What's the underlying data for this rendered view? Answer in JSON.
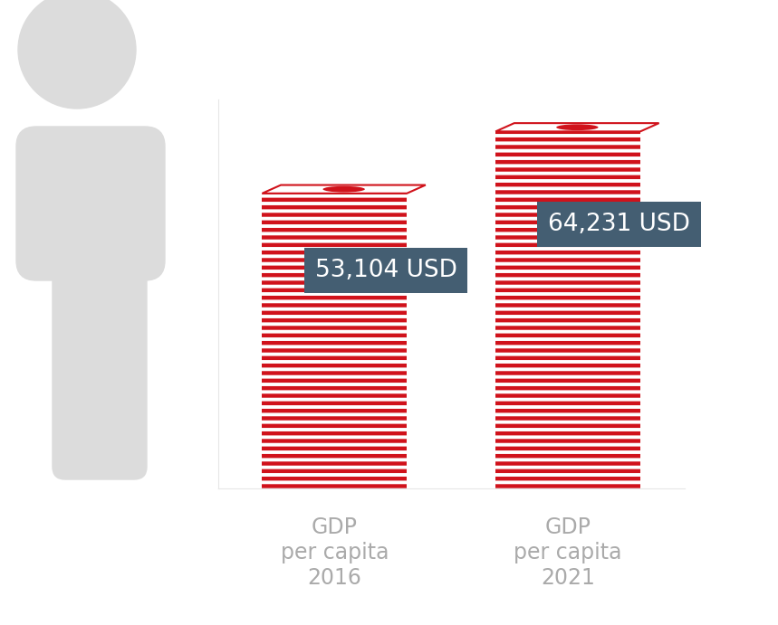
{
  "chart_data": {
    "type": "bar",
    "categories": [
      "GDP\nper capita\n2016",
      "GDP\nper capita\n2021"
    ],
    "values": [
      53104,
      64231
    ],
    "value_labels": [
      "53,104 USD",
      "64,231 USD"
    ],
    "color": "#d0121b",
    "ylim": [
      0,
      70000
    ],
    "yticks": [],
    "data_labels": true,
    "tick_labels": "x",
    "grid": false
  }
}
